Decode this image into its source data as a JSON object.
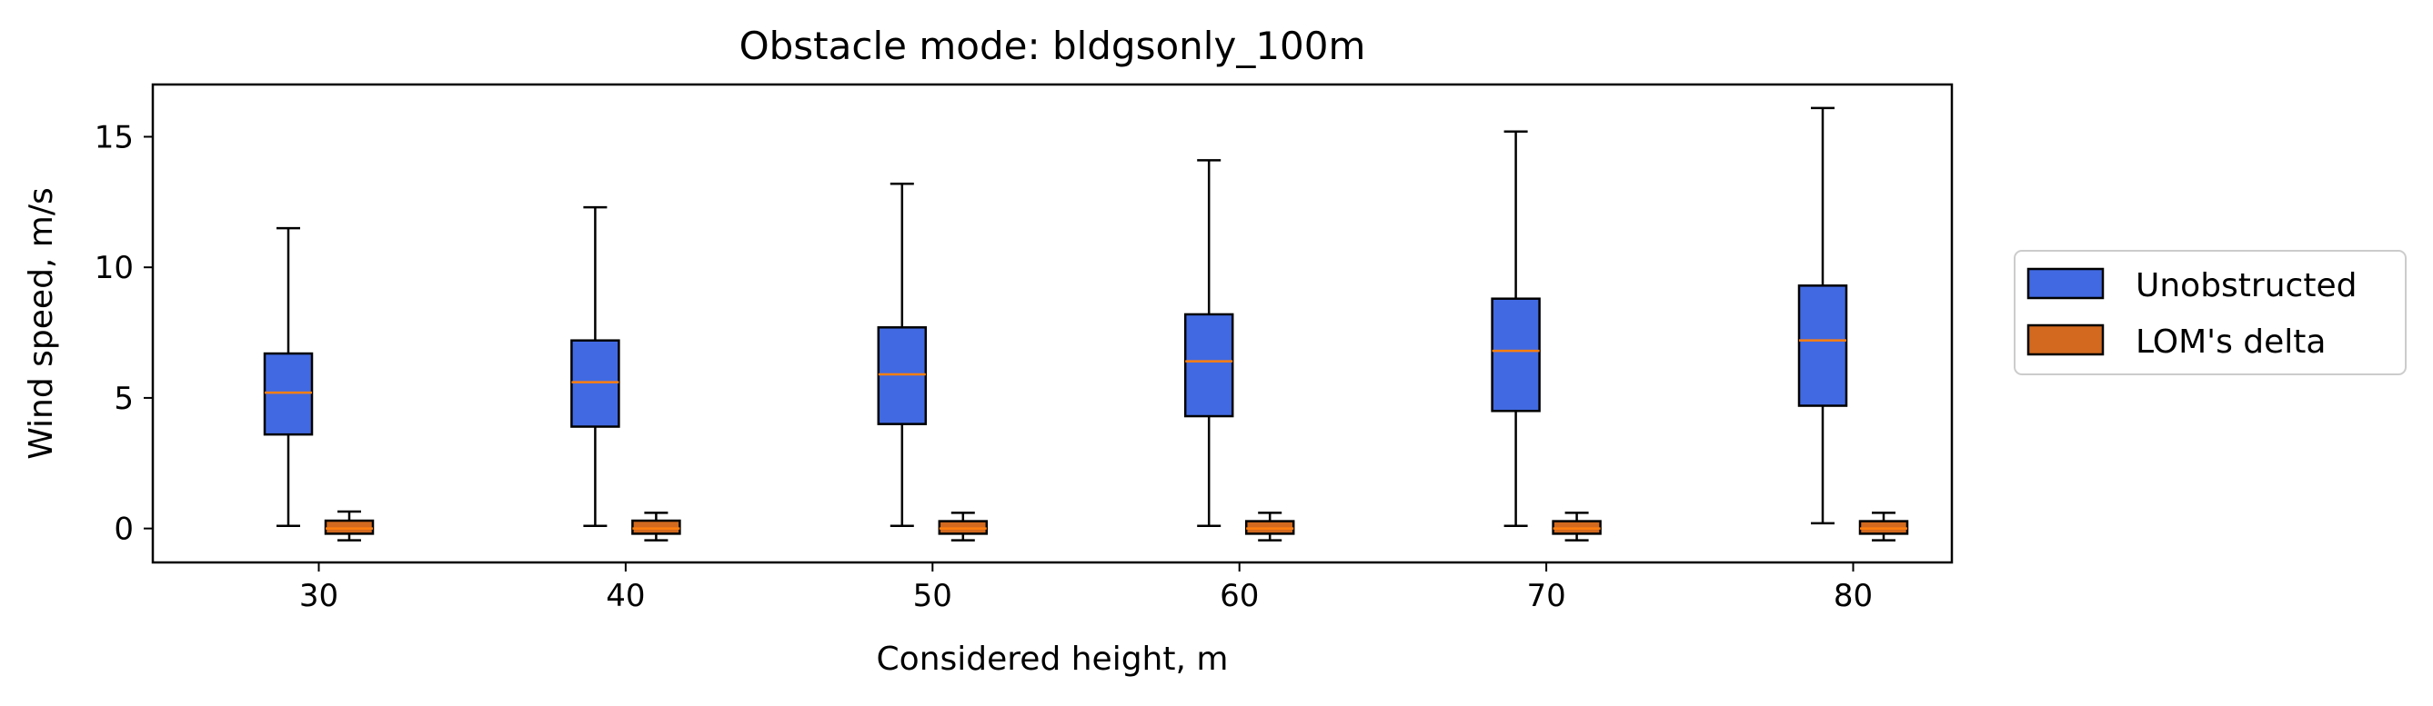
{
  "chart_data": {
    "type": "box",
    "title": "Obstacle mode: bldgsonly_100m",
    "xlabel": "Considered height, m",
    "ylabel": "Wind speed, m/s",
    "categories": [
      "30",
      "40",
      "50",
      "60",
      "70",
      "80"
    ],
    "ylim": [
      -1.3,
      17
    ],
    "yticks": [
      "0",
      "5",
      "10",
      "15"
    ],
    "grid": false,
    "legend_position": "right",
    "series": [
      {
        "name": "Unobstructed",
        "color": "#4169e1",
        "boxes": [
          {
            "whisker_low": 0.1,
            "q1": 3.6,
            "median": 5.2,
            "q3": 6.7,
            "whisker_high": 11.5
          },
          {
            "whisker_low": 0.1,
            "q1": 3.9,
            "median": 5.6,
            "q3": 7.2,
            "whisker_high": 12.3
          },
          {
            "whisker_low": 0.1,
            "q1": 4.0,
            "median": 5.9,
            "q3": 7.7,
            "whisker_high": 13.2
          },
          {
            "whisker_low": 0.1,
            "q1": 4.3,
            "median": 6.4,
            "q3": 8.2,
            "whisker_high": 14.1
          },
          {
            "whisker_low": 0.1,
            "q1": 4.5,
            "median": 6.8,
            "q3": 8.8,
            "whisker_high": 15.2
          },
          {
            "whisker_low": 0.2,
            "q1": 4.7,
            "median": 7.2,
            "q3": 9.3,
            "whisker_high": 16.1
          }
        ]
      },
      {
        "name": "LOM's delta",
        "color": "#d2691e",
        "boxes": [
          {
            "whisker_low": -0.45,
            "q1": -0.2,
            "median": 0.0,
            "q3": 0.3,
            "whisker_high": 0.65
          },
          {
            "whisker_low": -0.45,
            "q1": -0.2,
            "median": 0.0,
            "q3": 0.3,
            "whisker_high": 0.6
          },
          {
            "whisker_low": -0.45,
            "q1": -0.2,
            "median": 0.0,
            "q3": 0.28,
            "whisker_high": 0.6
          },
          {
            "whisker_low": -0.45,
            "q1": -0.2,
            "median": 0.0,
            "q3": 0.28,
            "whisker_high": 0.6
          },
          {
            "whisker_low": -0.45,
            "q1": -0.2,
            "median": 0.0,
            "q3": 0.28,
            "whisker_high": 0.6
          },
          {
            "whisker_low": -0.45,
            "q1": -0.2,
            "median": 0.0,
            "q3": 0.28,
            "whisker_high": 0.6
          }
        ]
      }
    ]
  }
}
